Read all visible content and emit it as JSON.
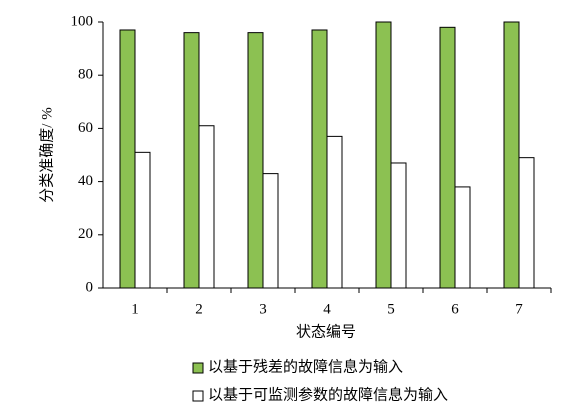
{
  "chart_data": {
    "type": "bar",
    "y_label": "分类准确度/ %",
    "x_label": "状态编号",
    "categories": [
      "1",
      "2",
      "3",
      "4",
      "5",
      "6",
      "7"
    ],
    "series": [
      {
        "name": "以基于残差的故障信息为输入",
        "color": "#8cc152",
        "values": [
          97,
          96,
          96,
          97,
          100,
          98,
          100
        ]
      },
      {
        "name": "以基于可监测参数的故障信息为输入",
        "color": "#ffffff",
        "values": [
          51,
          61,
          43,
          57,
          47,
          38,
          49
        ]
      }
    ],
    "ylim": [
      0,
      100
    ],
    "yticks": [
      0,
      20,
      40,
      60,
      80,
      100
    ],
    "grid": false
  }
}
